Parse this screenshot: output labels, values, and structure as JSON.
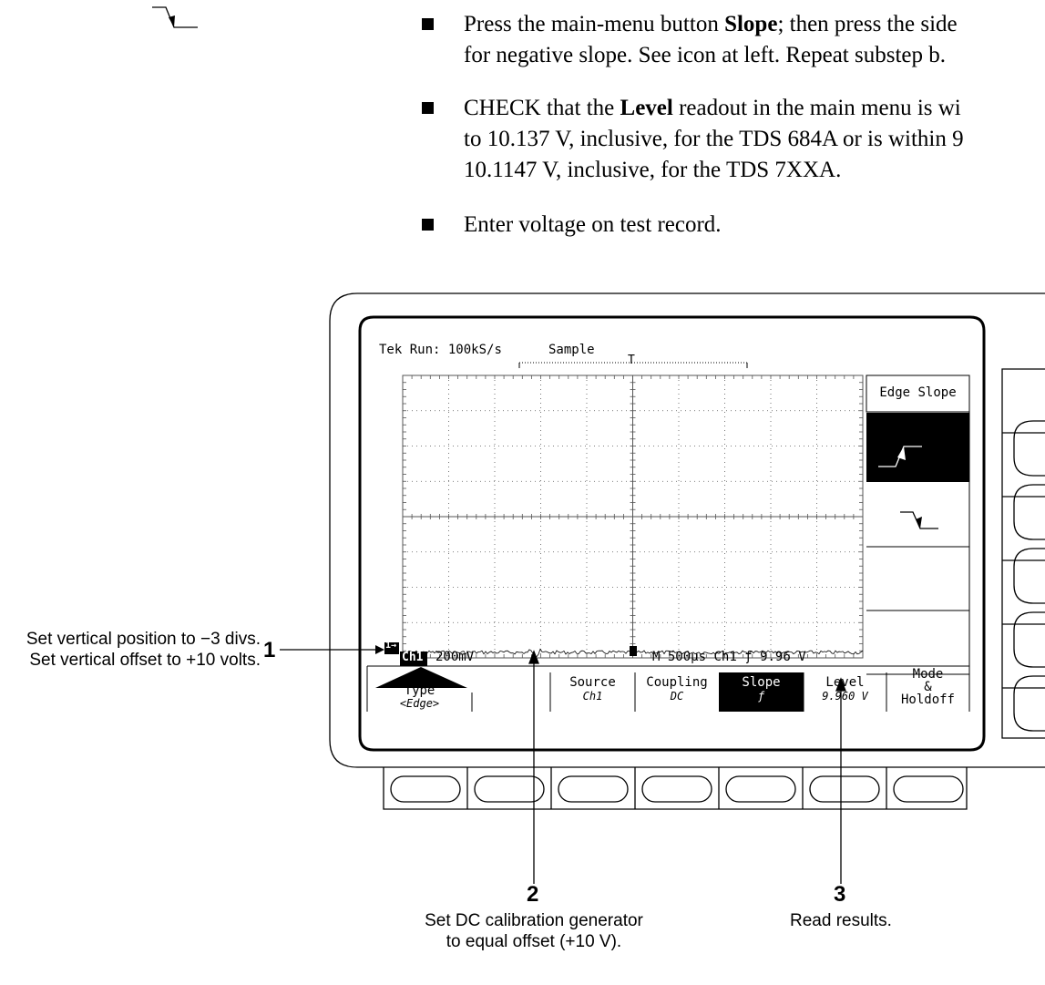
{
  "instructions": {
    "item1": {
      "pre": "Press the main-menu button ",
      "bold": "Slope",
      "post": "; then press the side",
      "line2": "for negative slope. See icon at left. Repeat substep b."
    },
    "item2": {
      "pre": "CHECK that the ",
      "bold": "Level",
      "post": " readout in the main menu is wi",
      "line2": "to 10.137 V, inclusive, for the TDS 684A or is within 9",
      "line3": "10.1147 V, inclusive, for the TDS 7XXA."
    },
    "item3": {
      "text": "Enter voltage on test record."
    }
  },
  "scope": {
    "status": {
      "tek": "Tek",
      "run": "Run: 100kS/s",
      "mode": "Sample",
      "trigger_marker": "T"
    },
    "channel_marker": "1→",
    "readout": {
      "ch": "Ch1",
      "volts": "200mV",
      "m": "M",
      "time": "500µs",
      "ch_trig": "Ch1",
      "slope": "ƒ",
      "level": "9.96 V"
    },
    "side_menu": {
      "title": "Edge Slope"
    },
    "bottom_menu": [
      {
        "label": "Type",
        "value": "<Edge>"
      },
      {
        "label": "",
        "value": ""
      },
      {
        "label": "Source",
        "value": "Ch1"
      },
      {
        "label": "Coupling",
        "value": "DC"
      },
      {
        "label": "Slope",
        "value": "ƒ"
      },
      {
        "label": "Level",
        "value": "9.960 V"
      },
      {
        "label": "Mode",
        "label2": "&",
        "label3": "Holdoff"
      }
    ]
  },
  "callouts": {
    "c1": {
      "num": "1",
      "line1": "Set vertical position to −3 divs.",
      "line2": "Set vertical offset to +10 volts."
    },
    "c2": {
      "num": "2",
      "line1": "Set DC calibration generator",
      "line2": "to equal offset (+10 V)."
    },
    "c3": {
      "num": "3",
      "line1": "Read results."
    }
  },
  "colors": {
    "ink": "#000000",
    "paper": "#ffffff",
    "grid": "#555555"
  }
}
